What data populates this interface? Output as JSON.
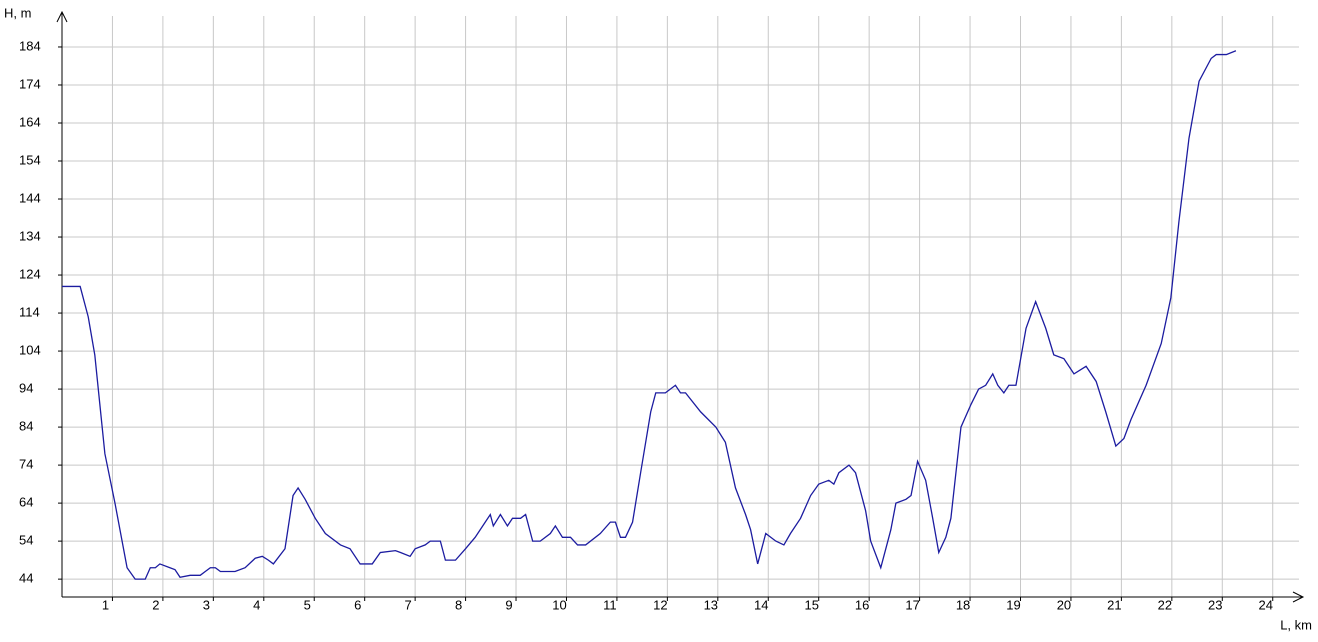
{
  "chart_data": {
    "type": "line",
    "y_label": "H, m",
    "x_label": "L, km",
    "x": [
      0,
      0.36,
      0.52,
      0.65,
      0.85,
      1.05,
      1.29,
      1.45,
      1.65,
      1.75,
      1.85,
      1.94,
      2.14,
      2.24,
      2.34,
      2.54,
      2.74,
      2.84,
      2.94,
      3.04,
      3.14,
      3.43,
      3.63,
      3.83,
      3.97,
      4.09,
      4.19,
      4.42,
      4.58,
      4.68,
      4.82,
      5.02,
      5.22,
      5.52,
      5.71,
      5.91,
      6.15,
      6.31,
      6.61,
      6.71,
      6.9,
      7.0,
      7.2,
      7.3,
      7.5,
      7.6,
      7.8,
      8.0,
      8.19,
      8.39,
      8.49,
      8.55,
      8.69,
      8.83,
      8.93,
      9.09,
      9.19,
      9.33,
      9.48,
      9.68,
      9.78,
      9.92,
      10.08,
      10.22,
      10.38,
      10.67,
      10.87,
      10.97,
      11.07,
      11.17,
      11.31,
      11.47,
      11.67,
      11.77,
      11.96,
      12.16,
      12.26,
      12.36,
      12.66,
      12.96,
      13.15,
      13.35,
      13.55,
      13.65,
      13.79,
      13.95,
      14.15,
      14.31,
      14.44,
      14.64,
      14.84,
      15.0,
      15.2,
      15.3,
      15.4,
      15.6,
      15.73,
      15.93,
      16.03,
      16.23,
      16.43,
      16.53,
      16.73,
      16.83,
      16.96,
      17.12,
      17.26,
      17.38,
      17.52,
      17.62,
      17.82,
      18.02,
      18.17,
      18.31,
      18.45,
      18.55,
      18.67,
      18.77,
      18.91,
      19.11,
      19.3,
      19.5,
      19.66,
      19.86,
      20.06,
      20.3,
      20.5,
      20.69,
      20.89,
      21.05,
      21.19,
      21.49,
      21.79,
      21.98,
      22.14,
      22.34,
      22.54,
      22.78,
      22.88,
      23.08,
      23.27
    ],
    "values": [
      121,
      121,
      113,
      103,
      77,
      64,
      47,
      44,
      44,
      47,
      47,
      48,
      47,
      46.5,
      44.5,
      45,
      45,
      46,
      47,
      47,
      46,
      46,
      47,
      49.5,
      50,
      49,
      48,
      52,
      66,
      68,
      65,
      60,
      56,
      53,
      52,
      48,
      48,
      51,
      51.5,
      51,
      50,
      52,
      53,
      54,
      54,
      49,
      49,
      52,
      55,
      59,
      61,
      58,
      61,
      58,
      60,
      60,
      61,
      54,
      54,
      56,
      58,
      55,
      55,
      53,
      53,
      56,
      59,
      59,
      55,
      55,
      59,
      72,
      88,
      93,
      93,
      95,
      93,
      93,
      88,
      84,
      80,
      68,
      61,
      57,
      48,
      56,
      54,
      53,
      56,
      60,
      66,
      69,
      70,
      69,
      72,
      74,
      72,
      62,
      54,
      47,
      57,
      64,
      65,
      66,
      75,
      70,
      60,
      51,
      55,
      60,
      84,
      90,
      94,
      95,
      98,
      95,
      93,
      95,
      95,
      110,
      117,
      110,
      103,
      102,
      98,
      100,
      96,
      88,
      79,
      81,
      86,
      95,
      106,
      118,
      138,
      160,
      175,
      181,
      182,
      182,
      183
    ],
    "color": "#1c1ca0",
    "xlim": [
      0,
      24.6
    ],
    "ylim": [
      39.3,
      193.2
    ],
    "xticks": [
      1,
      2,
      3,
      4,
      5,
      6,
      7,
      8,
      9,
      10,
      11,
      12,
      13,
      14,
      15,
      16,
      17,
      18,
      19,
      20,
      21,
      22,
      23,
      24
    ],
    "yticks": [
      44,
      54,
      64,
      74,
      84,
      94,
      104,
      114,
      124,
      134,
      144,
      154,
      164,
      174,
      184
    ],
    "grid": true
  }
}
